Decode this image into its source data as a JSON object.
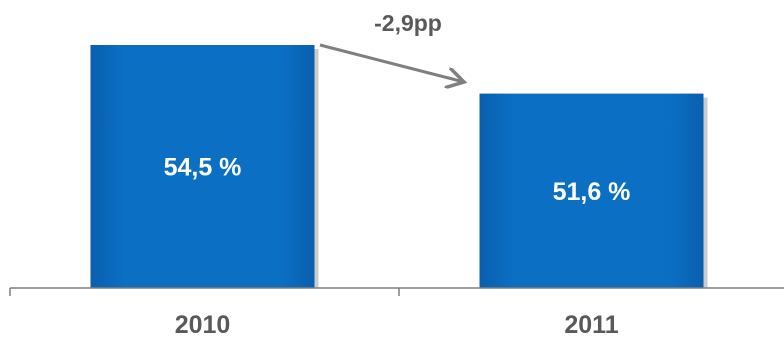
{
  "chart_data": {
    "type": "bar",
    "categories": [
      "2010",
      "2011"
    ],
    "values": [
      54.5,
      51.6
    ],
    "data_labels": [
      "54,5 %",
      "51,6 %"
    ],
    "annotation": "-2,9pp",
    "title": "",
    "xlabel": "",
    "ylabel": "",
    "grid": false,
    "legend": "none",
    "colors": {
      "bar": "#0a6dbf",
      "bar_shadow": "#8c8c8c",
      "axis": "#7f7f7f",
      "text": "#595959",
      "arrow": "#7f7f7f"
    }
  }
}
